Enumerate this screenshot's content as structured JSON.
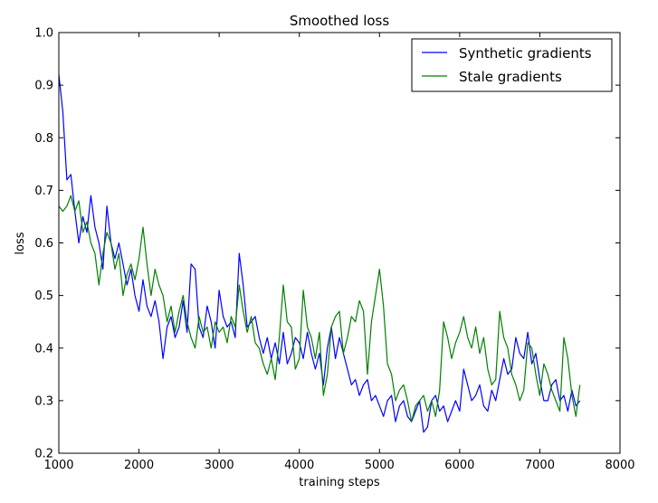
{
  "chart_data": {
    "type": "line",
    "title": "Smoothed loss",
    "xlabel": "training steps",
    "ylabel": "loss",
    "xlim": [
      1000,
      8000
    ],
    "ylim": [
      0.2,
      1.0
    ],
    "xticks": [
      1000,
      2000,
      3000,
      4000,
      5000,
      6000,
      7000,
      8000
    ],
    "yticks": [
      0.2,
      0.3,
      0.4,
      0.5,
      0.6,
      0.7,
      0.8,
      0.9,
      1.0
    ],
    "legend_position": "top-right",
    "grid": false,
    "series": [
      {
        "name": "Synthetic gradients",
        "color": "#0000ff",
        "x": [
          1000,
          1050,
          1100,
          1150,
          1200,
          1250,
          1300,
          1350,
          1400,
          1450,
          1500,
          1550,
          1600,
          1650,
          1700,
          1750,
          1800,
          1850,
          1900,
          1950,
          2000,
          2050,
          2100,
          2150,
          2200,
          2250,
          2300,
          2350,
          2400,
          2450,
          2500,
          2550,
          2600,
          2650,
          2700,
          2750,
          2800,
          2850,
          2900,
          2950,
          3000,
          3050,
          3100,
          3150,
          3200,
          3250,
          3300,
          3350,
          3400,
          3450,
          3500,
          3550,
          3600,
          3650,
          3700,
          3750,
          3800,
          3850,
          3900,
          3950,
          4000,
          4050,
          4100,
          4150,
          4200,
          4250,
          4300,
          4350,
          4400,
          4450,
          4500,
          4550,
          4600,
          4650,
          4700,
          4750,
          4800,
          4850,
          4900,
          4950,
          5000,
          5050,
          5100,
          5150,
          5200,
          5250,
          5300,
          5350,
          5400,
          5450,
          5500,
          5550,
          5600,
          5650,
          5700,
          5750,
          5800,
          5850,
          5900,
          5950,
          6000,
          6050,
          6100,
          6150,
          6200,
          6250,
          6300,
          6350,
          6400,
          6450,
          6500,
          6550,
          6600,
          6650,
          6700,
          6750,
          6800,
          6850,
          6900,
          6950,
          7000,
          7050,
          7100,
          7150,
          7200,
          7250,
          7300,
          7350,
          7400,
          7450,
          7500
        ],
        "y": [
          0.92,
          0.85,
          0.72,
          0.73,
          0.66,
          0.6,
          0.65,
          0.62,
          0.69,
          0.63,
          0.6,
          0.55,
          0.67,
          0.6,
          0.57,
          0.6,
          0.56,
          0.52,
          0.55,
          0.5,
          0.47,
          0.53,
          0.48,
          0.46,
          0.49,
          0.45,
          0.38,
          0.44,
          0.46,
          0.42,
          0.44,
          0.49,
          0.43,
          0.56,
          0.55,
          0.44,
          0.42,
          0.48,
          0.45,
          0.4,
          0.51,
          0.46,
          0.44,
          0.45,
          0.42,
          0.58,
          0.52,
          0.44,
          0.45,
          0.46,
          0.42,
          0.39,
          0.42,
          0.38,
          0.41,
          0.37,
          0.43,
          0.37,
          0.39,
          0.42,
          0.41,
          0.38,
          0.43,
          0.39,
          0.36,
          0.39,
          0.33,
          0.4,
          0.44,
          0.38,
          0.42,
          0.39,
          0.36,
          0.33,
          0.34,
          0.31,
          0.33,
          0.34,
          0.3,
          0.31,
          0.29,
          0.27,
          0.3,
          0.31,
          0.26,
          0.29,
          0.3,
          0.27,
          0.26,
          0.28,
          0.3,
          0.24,
          0.25,
          0.3,
          0.31,
          0.28,
          0.29,
          0.26,
          0.28,
          0.3,
          0.28,
          0.36,
          0.33,
          0.3,
          0.31,
          0.33,
          0.29,
          0.28,
          0.32,
          0.3,
          0.34,
          0.38,
          0.35,
          0.36,
          0.42,
          0.39,
          0.38,
          0.43,
          0.37,
          0.39,
          0.34,
          0.3,
          0.3,
          0.33,
          0.34,
          0.3,
          0.31,
          0.28,
          0.32,
          0.29,
          0.3
        ]
      },
      {
        "name": "Stale gradients",
        "color": "#008000",
        "x": [
          1000,
          1050,
          1100,
          1150,
          1200,
          1250,
          1300,
          1350,
          1400,
          1450,
          1500,
          1550,
          1600,
          1650,
          1700,
          1750,
          1800,
          1850,
          1900,
          1950,
          2000,
          2050,
          2100,
          2150,
          2200,
          2250,
          2300,
          2350,
          2400,
          2450,
          2500,
          2550,
          2600,
          2650,
          2700,
          2750,
          2800,
          2850,
          2900,
          2950,
          3000,
          3050,
          3100,
          3150,
          3200,
          3250,
          3300,
          3350,
          3400,
          3450,
          3500,
          3550,
          3600,
          3650,
          3700,
          3750,
          3800,
          3850,
          3900,
          3950,
          4000,
          4050,
          4100,
          4150,
          4200,
          4250,
          4300,
          4350,
          4400,
          4450,
          4500,
          4550,
          4600,
          4650,
          4700,
          4750,
          4800,
          4850,
          4900,
          4950,
          5000,
          5050,
          5100,
          5150,
          5200,
          5250,
          5300,
          5350,
          5400,
          5450,
          5500,
          5550,
          5600,
          5650,
          5700,
          5750,
          5800,
          5850,
          5900,
          5950,
          6000,
          6050,
          6100,
          6150,
          6200,
          6250,
          6300,
          6350,
          6400,
          6450,
          6500,
          6550,
          6600,
          6650,
          6700,
          6750,
          6800,
          6850,
          6900,
          6950,
          7000,
          7050,
          7100,
          7150,
          7200,
          7250,
          7300,
          7350,
          7400,
          7450,
          7500
        ],
        "y": [
          0.67,
          0.66,
          0.67,
          0.69,
          0.66,
          0.68,
          0.62,
          0.64,
          0.6,
          0.58,
          0.52,
          0.58,
          0.62,
          0.6,
          0.55,
          0.58,
          0.5,
          0.54,
          0.56,
          0.53,
          0.57,
          0.63,
          0.56,
          0.5,
          0.55,
          0.52,
          0.5,
          0.45,
          0.48,
          0.43,
          0.47,
          0.5,
          0.45,
          0.42,
          0.4,
          0.46,
          0.43,
          0.44,
          0.4,
          0.45,
          0.43,
          0.44,
          0.41,
          0.46,
          0.44,
          0.52,
          0.47,
          0.43,
          0.46,
          0.41,
          0.4,
          0.37,
          0.35,
          0.38,
          0.34,
          0.42,
          0.52,
          0.45,
          0.44,
          0.36,
          0.38,
          0.51,
          0.44,
          0.42,
          0.38,
          0.43,
          0.31,
          0.35,
          0.44,
          0.46,
          0.47,
          0.39,
          0.42,
          0.46,
          0.45,
          0.49,
          0.47,
          0.35,
          0.45,
          0.5,
          0.55,
          0.48,
          0.37,
          0.35,
          0.3,
          0.32,
          0.33,
          0.3,
          0.26,
          0.29,
          0.3,
          0.31,
          0.28,
          0.3,
          0.27,
          0.32,
          0.45,
          0.42,
          0.38,
          0.41,
          0.43,
          0.46,
          0.42,
          0.4,
          0.44,
          0.39,
          0.42,
          0.36,
          0.33,
          0.34,
          0.47,
          0.42,
          0.4,
          0.35,
          0.33,
          0.3,
          0.32,
          0.41,
          0.4,
          0.35,
          0.31,
          0.37,
          0.35,
          0.32,
          0.3,
          0.28,
          0.42,
          0.38,
          0.31,
          0.27,
          0.33
        ]
      }
    ]
  }
}
